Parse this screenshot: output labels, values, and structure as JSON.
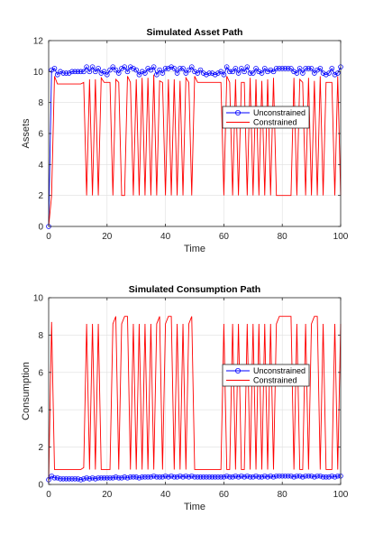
{
  "chart_data": [
    {
      "type": "line",
      "title": "Simulated Asset Path",
      "xlabel": "Time",
      "ylabel": "Assets",
      "xlim": [
        0,
        100
      ],
      "ylim": [
        0,
        12
      ],
      "xticks": [
        0,
        20,
        40,
        60,
        80,
        100
      ],
      "yticks": [
        0,
        2,
        4,
        6,
        8,
        10,
        12
      ],
      "grid": true,
      "legend_position": "right-middle",
      "series": [
        {
          "name": "Unconstrained",
          "color": "#0000ff",
          "marker": "circle",
          "values": [
            0.0,
            10.1,
            10.2,
            9.8,
            10.0,
            9.9,
            9.9,
            9.9,
            10.0,
            10.0,
            10.0,
            10.0,
            10.0,
            10.3,
            10.0,
            10.3,
            10.0,
            10.2,
            9.9,
            10.0,
            9.8,
            10.1,
            10.3,
            10.1,
            9.9,
            10.2,
            10.3,
            10.0,
            10.3,
            10.2,
            10.1,
            9.8,
            10.0,
            9.9,
            10.2,
            10.1,
            10.3,
            9.8,
            10.1,
            9.9,
            10.2,
            10.2,
            10.3,
            10.2,
            9.9,
            10.2,
            10.2,
            9.9,
            10.1,
            10.3,
            10.0,
            9.9,
            10.1,
            9.9,
            9.8,
            9.9,
            9.9,
            9.8,
            9.9,
            10.0,
            9.8,
            10.3,
            10.0,
            10.0,
            10.2,
            9.9,
            10.2,
            10.0,
            10.3,
            9.9,
            9.9,
            10.2,
            10.0,
            9.9,
            10.2,
            10.0,
            10.1,
            10.0,
            10.2,
            10.2,
            10.2,
            10.2,
            10.2,
            10.2,
            10.0,
            9.9,
            10.2,
            9.9,
            10.2,
            10.2,
            10.2,
            9.9,
            10.1,
            10.2,
            9.9,
            9.8,
            9.9,
            10.2,
            9.8,
            9.9,
            10.3
          ]
        },
        {
          "name": "Constrained",
          "color": "#ff0000",
          "marker": "none",
          "values": [
            0.0,
            2.0,
            9.7,
            9.2,
            9.2,
            9.2,
            9.2,
            9.2,
            9.2,
            9.2,
            9.2,
            9.2,
            9.3,
            2.0,
            9.5,
            2.0,
            9.5,
            2.0,
            9.6,
            9.3,
            9.3,
            9.3,
            2.0,
            9.5,
            9.3,
            2.0,
            2.0,
            9.7,
            9.3,
            2.0,
            9.5,
            2.0,
            9.6,
            2.0,
            9.6,
            2.0,
            9.8,
            2.0,
            9.4,
            9.3,
            2.0,
            9.5,
            2.0,
            9.5,
            2.0,
            9.4,
            2.0,
            9.6,
            9.3,
            2.0,
            9.7,
            9.3,
            9.3,
            9.3,
            9.3,
            9.3,
            9.3,
            9.3,
            9.3,
            9.3,
            2.0,
            9.7,
            9.3,
            2.0,
            9.5,
            2.0,
            9.3,
            9.3,
            2.0,
            9.6,
            2.0,
            9.5,
            2.0,
            9.4,
            2.0,
            9.5,
            2.0,
            9.6,
            2.0,
            2.0,
            2.0,
            2.0,
            2.0,
            2.0,
            9.6,
            2.0,
            9.5,
            9.3,
            2.0,
            9.6,
            2.0,
            9.4,
            2.0,
            9.7,
            2.0,
            9.3,
            9.3,
            9.3,
            2.0,
            9.7,
            2.0
          ]
        }
      ]
    },
    {
      "type": "line",
      "title": "Simulated Consumption Path",
      "xlabel": "Time",
      "ylabel": "Consumption",
      "xlim": [
        0,
        100
      ],
      "ylim": [
        0,
        10
      ],
      "xticks": [
        0,
        20,
        40,
        60,
        80,
        100
      ],
      "yticks": [
        0,
        2,
        4,
        6,
        8,
        10
      ],
      "grid": true,
      "legend_position": "right-middle",
      "series": [
        {
          "name": "Unconstrained",
          "color": "#0000ff",
          "marker": "circle",
          "values": [
            0.25,
            0.45,
            0.35,
            0.35,
            0.3,
            0.3,
            0.3,
            0.3,
            0.3,
            0.3,
            0.3,
            0.25,
            0.3,
            0.35,
            0.3,
            0.35,
            0.3,
            0.35,
            0.35,
            0.35,
            0.35,
            0.35,
            0.35,
            0.4,
            0.35,
            0.35,
            0.4,
            0.35,
            0.4,
            0.4,
            0.4,
            0.35,
            0.4,
            0.4,
            0.4,
            0.4,
            0.45,
            0.4,
            0.4,
            0.4,
            0.45,
            0.4,
            0.45,
            0.4,
            0.4,
            0.45,
            0.4,
            0.45,
            0.4,
            0.45,
            0.4,
            0.4,
            0.4,
            0.4,
            0.4,
            0.4,
            0.4,
            0.4,
            0.4,
            0.4,
            0.4,
            0.45,
            0.4,
            0.4,
            0.45,
            0.4,
            0.45,
            0.4,
            0.45,
            0.4,
            0.4,
            0.45,
            0.4,
            0.4,
            0.45,
            0.4,
            0.45,
            0.4,
            0.45,
            0.45,
            0.45,
            0.45,
            0.45,
            0.45,
            0.4,
            0.45,
            0.45,
            0.4,
            0.45,
            0.45,
            0.45,
            0.4,
            0.45,
            0.45,
            0.4,
            0.4,
            0.4,
            0.45,
            0.4,
            0.45,
            0.45
          ]
        },
        {
          "name": "Constrained",
          "color": "#ff0000",
          "marker": "none",
          "values": [
            0.1,
            8.7,
            0.8,
            0.8,
            0.8,
            0.8,
            0.8,
            0.8,
            0.8,
            0.8,
            0.8,
            0.8,
            0.9,
            8.6,
            0.8,
            8.6,
            0.8,
            8.6,
            0.8,
            0.8,
            0.8,
            0.8,
            8.6,
            9.0,
            0.8,
            8.6,
            9.0,
            9.0,
            0.8,
            8.6,
            0.8,
            8.6,
            0.8,
            8.6,
            0.8,
            8.6,
            0.8,
            8.6,
            9.0,
            0.8,
            8.6,
            9.0,
            9.0,
            0.8,
            8.6,
            0.8,
            8.6,
            0.8,
            8.6,
            9.0,
            0.8,
            0.8,
            0.8,
            0.8,
            0.8,
            0.8,
            0.8,
            0.8,
            0.8,
            0.8,
            8.6,
            0.8,
            0.8,
            8.6,
            0.8,
            8.6,
            0.8,
            0.8,
            8.6,
            0.8,
            8.6,
            0.8,
            8.6,
            0.8,
            8.6,
            0.8,
            8.6,
            0.8,
            8.6,
            9.0,
            9.0,
            9.0,
            9.0,
            9.0,
            0.8,
            8.6,
            0.8,
            0.8,
            8.6,
            0.8,
            8.6,
            9.0,
            9.0,
            0.8,
            8.6,
            0.8,
            0.8,
            0.8,
            8.6,
            0.8,
            8.6
          ]
        }
      ]
    }
  ]
}
